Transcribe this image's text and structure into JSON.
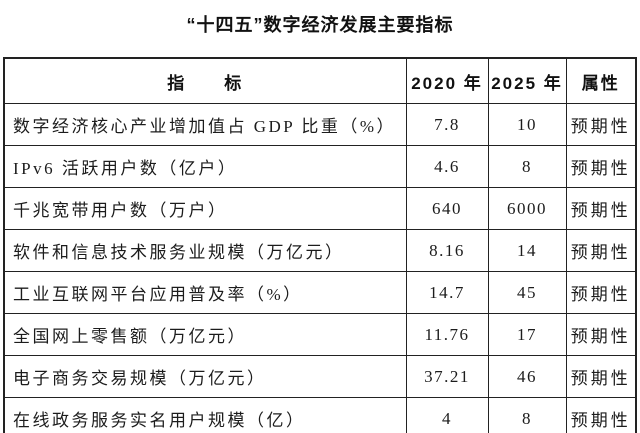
{
  "page": {
    "title": "“十四五”数字经济发展主要指标"
  },
  "table": {
    "headers": [
      "指　　标",
      "2020 年",
      "2025 年",
      "属性"
    ],
    "attribute_value": "预期性",
    "rows": [
      {
        "indicator": "数字经济核心产业增加值占 GDP 比重（%）",
        "y2020": "7.8",
        "y2025": "10",
        "attribute": "预期性"
      },
      {
        "indicator": "IPv6 活跃用户数（亿户）",
        "y2020": "4.6",
        "y2025": "8",
        "attribute": "预期性"
      },
      {
        "indicator": "千兆宽带用户数（万户）",
        "y2020": "640",
        "y2025": "6000",
        "attribute": "预期性"
      },
      {
        "indicator": "软件和信息技术服务业规模（万亿元）",
        "y2020": "8.16",
        "y2025": "14",
        "attribute": "预期性"
      },
      {
        "indicator": "工业互联网平台应用普及率（%）",
        "y2020": "14.7",
        "y2025": "45",
        "attribute": "预期性"
      },
      {
        "indicator": "全国网上零售额（万亿元）",
        "y2020": "11.76",
        "y2025": "17",
        "attribute": "预期性"
      },
      {
        "indicator": "电子商务交易规模（万亿元）",
        "y2020": "37.21",
        "y2025": "46",
        "attribute": "预期性"
      },
      {
        "indicator": "在线政务服务实名用户规模（亿）",
        "y2020": "4",
        "y2025": "8",
        "attribute": "预期性"
      }
    ]
  }
}
